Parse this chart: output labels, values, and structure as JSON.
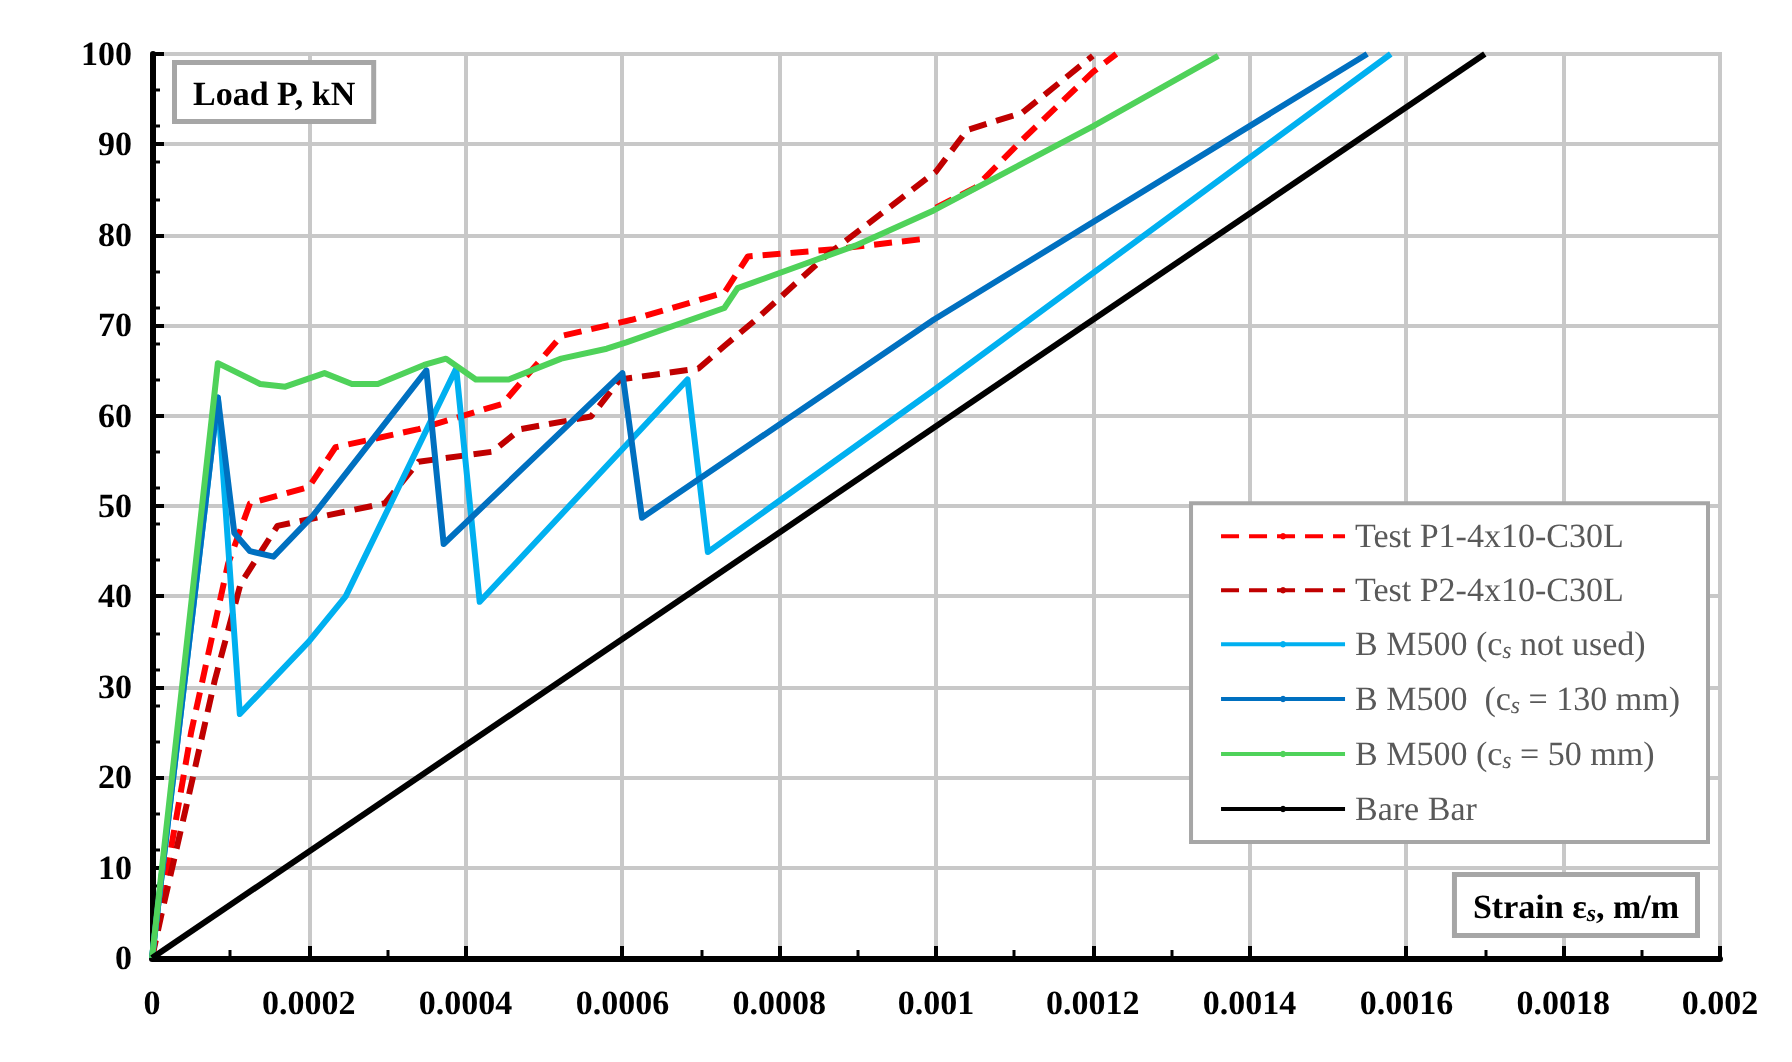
{
  "chart_data": {
    "type": "line",
    "xlabel": "Strain ε$_{s}$, m/m",
    "ylabel": "Load P, kN",
    "xlim": [
      0,
      0.002
    ],
    "xticks": [
      0,
      0.0002,
      0.0004,
      0.0006,
      0.0008,
      0.001,
      0.0012,
      0.0014,
      0.0016,
      0.0018,
      0.002
    ],
    "ylim": [
      0,
      100
    ],
    "yticks": [
      0,
      10,
      20,
      30,
      40,
      50,
      60,
      70,
      80,
      90,
      100
    ],
    "grid": true,
    "legend": "bottom right",
    "marker": "none",
    "series": [
      {
        "name": "Test P1-4x10-C30L",
        "color": "#ff0000",
        "line_style": "dashed",
        "x": [
          0,
          5e-05,
          9.7e-05,
          0.000125,
          0.0002,
          0.000234,
          0.00034,
          0.000447,
          0.000522,
          0.000612,
          0.00073,
          0.00076,
          0.00087,
          0.00098,
          0.00099,
          0.001,
          0.00105,
          0.00111,
          0.0012,
          0.00123
        ],
        "values": [
          0,
          25,
          43.6,
          50.3,
          52.1,
          56.5,
          58.5,
          61.3,
          68.8,
          70.6,
          73.6,
          77.6,
          78.4,
          79.5,
          null,
          83,
          85.2,
          90.5,
          98,
          100
        ]
      },
      {
        "name": "Test P2-4x10-C30L",
        "color": "#c00000",
        "line_style": "dashed",
        "x": [
          0,
          1.25e-05,
          4.7e-05,
          8e-05,
          0.000113,
          0.00016,
          0.000297,
          0.00034,
          0.000434,
          0.00047,
          0.00056,
          0.000597,
          0.000697,
          0.00073,
          0.00077,
          0.00086,
          0.00094,
          0.001,
          0.00104,
          0.00111,
          0.0012
        ],
        "values": [
          0,
          5,
          18,
          30.7,
          41.4,
          47.8,
          50.3,
          54.9,
          56,
          58.5,
          59.9,
          64,
          65.2,
          67.7,
          70.6,
          77.7,
          83,
          87,
          91.6,
          93.5,
          99.8
        ]
      },
      {
        "name": "B M500 (c$_{s}$ not used)",
        "color": "#00b0f0",
        "line_style": "solid",
        "x": [
          0,
          8.4e-05,
          0.000112,
          0.0002,
          0.000247,
          0.000388,
          0.000418,
          0.000683,
          0.000709,
          0.000997,
          0.00158
        ],
        "values": [
          0,
          62,
          27,
          35,
          40,
          65.2,
          39.4,
          64,
          44.9,
          62.8,
          100
        ]
      },
      {
        "name": "B M500  (c$_{s}$ = 130 mm)",
        "color": "#0070c0",
        "line_style": "solid",
        "x": [
          0,
          8.4e-05,
          0.000105,
          0.000125,
          0.000155,
          0.000205,
          0.00035,
          0.000372,
          0.0006,
          0.000625,
          0.000997,
          0.00155
        ],
        "values": [
          0,
          62,
          47,
          45,
          44.4,
          48.9,
          65,
          45.8,
          64.7,
          48.7,
          70.6,
          100
        ]
      },
      {
        "name": "B M500 (c$_{s}$ = 50 mm)",
        "color": "#4fd25a",
        "line_style": "solid",
        "x": [
          0,
          8.4e-05,
          0.000138,
          0.00017,
          0.00022,
          0.000255,
          0.000288,
          0.000347,
          0.000375,
          0.000413,
          0.000455,
          0.000522,
          0.00058,
          0.000605,
          0.00073,
          0.000747,
          0.000897,
          0.000997,
          0.0012,
          0.00136
        ],
        "values": [
          0,
          65.8,
          63.5,
          63.2,
          64.7,
          63.5,
          63.5,
          65.6,
          66.3,
          64,
          64,
          66.3,
          67.4,
          68.1,
          71.9,
          74.1,
          78.8,
          82.7,
          92,
          99.8
        ]
      },
      {
        "name": "Bare Bar",
        "color": "#000000",
        "line_style": "solid",
        "x": [
          0,
          0.0017
        ],
        "values": [
          0,
          100
        ]
      }
    ]
  }
}
